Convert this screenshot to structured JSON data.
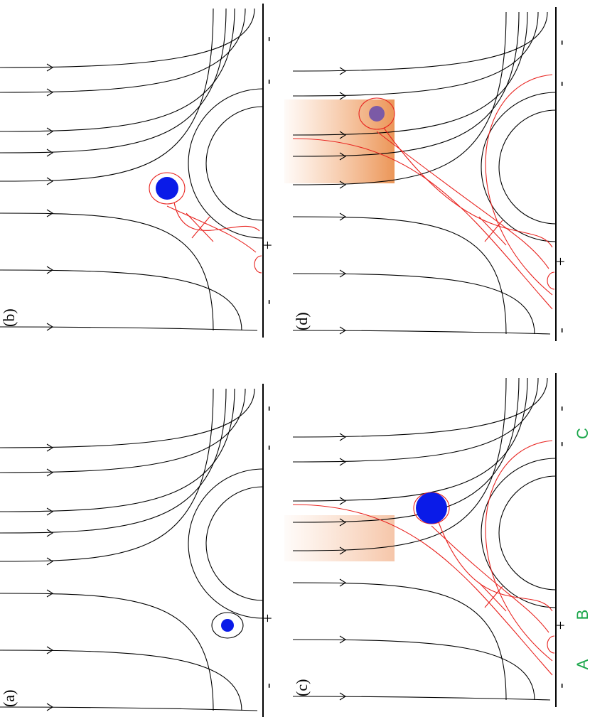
{
  "panels": [
    {
      "label": "(a)",
      "signs": [
        "-",
        "-",
        "+",
        "-"
      ]
    },
    {
      "label": "(b)",
      "signs": [
        "-",
        "-",
        "+",
        "-"
      ]
    },
    {
      "label": "(c)",
      "signs": [
        "-",
        "-",
        "+",
        "-"
      ],
      "letters": [
        "A",
        "B",
        "C"
      ]
    },
    {
      "label": "(d)",
      "signs": [
        "-",
        "-",
        "+",
        "-"
      ]
    }
  ]
}
